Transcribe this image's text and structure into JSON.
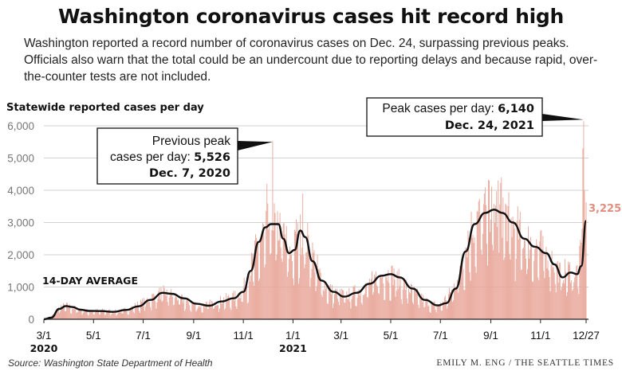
{
  "title": "Washington coronavirus cases hit record high",
  "subtitle": "Washington reported a record number of coronavirus cases on Dec. 24, surpassing previous peaks. Officials also warn that the total could be an undercount due to reporting delays and because rapid, over-the-counter tests are not included.",
  "source": "Source: Washington State Department of Health",
  "credit": "EMILY M. ENG / THE SEATTLE TIMES",
  "colors": {
    "bars": "#e8a79a",
    "bars_stroke": "#dc8e80",
    "average": "#111111",
    "last_label": "#e08f7e",
    "grid": "#d0d0d0"
  },
  "chart_data": {
    "type": "bar",
    "title": "Washington coronavirus cases hit record high",
    "ylabel": "Statewide reported cases per day",
    "ylim": [
      0,
      6000
    ],
    "yticks": [
      0,
      1000,
      2000,
      3000,
      4000,
      5000,
      6000
    ],
    "ytick_labels": [
      "0",
      "1,000",
      "2,000",
      "3,000",
      "4,000",
      "5,000",
      "6,000"
    ],
    "x_range": [
      "2020-03-01",
      "2021-12-27"
    ],
    "xticks": [
      {
        "date": "2020-03-01",
        "label": "3/1",
        "year": "2020"
      },
      {
        "date": "2020-05-01",
        "label": "5/1"
      },
      {
        "date": "2020-07-01",
        "label": "7/1"
      },
      {
        "date": "2020-09-01",
        "label": "9/1"
      },
      {
        "date": "2020-11-01",
        "label": "11/1"
      },
      {
        "date": "2021-01-01",
        "label": "1/1",
        "year": "2021"
      },
      {
        "date": "2021-03-01",
        "label": "3/1"
      },
      {
        "date": "2021-05-01",
        "label": "5/1"
      },
      {
        "date": "2021-07-01",
        "label": "7/1"
      },
      {
        "date": "2021-09-01",
        "label": "9/1"
      },
      {
        "date": "2021-11-01",
        "label": "11/1"
      },
      {
        "date": "2021-12-27",
        "label": "12/27"
      }
    ],
    "grid": "horizontal",
    "series": [
      {
        "name": "Statewide reported cases per day",
        "kind": "daily-bars",
        "shape_points": [
          [
            "2020-03-01",
            0
          ],
          [
            "2020-03-10",
            80
          ],
          [
            "2020-03-20",
            350
          ],
          [
            "2020-03-28",
            420
          ],
          [
            "2020-04-10",
            320
          ],
          [
            "2020-04-25",
            250
          ],
          [
            "2020-05-15",
            260
          ],
          [
            "2020-06-01",
            230
          ],
          [
            "2020-06-15",
            330
          ],
          [
            "2020-07-01",
            520
          ],
          [
            "2020-07-20",
            780
          ],
          [
            "2020-07-27",
            830
          ],
          [
            "2020-08-10",
            700
          ],
          [
            "2020-08-25",
            520
          ],
          [
            "2020-09-10",
            420
          ],
          [
            "2020-09-25",
            500
          ],
          [
            "2020-10-10",
            620
          ],
          [
            "2020-10-25",
            720
          ],
          [
            "2020-11-05",
            1100
          ],
          [
            "2020-11-15",
            2000
          ],
          [
            "2020-11-25",
            2600
          ],
          [
            "2020-12-07",
            2950
          ],
          [
            "2020-12-20",
            2700
          ],
          [
            "2020-12-28",
            2000
          ],
          [
            "2021-01-05",
            2300
          ],
          [
            "2021-01-12",
            2700
          ],
          [
            "2021-01-22",
            2200
          ],
          [
            "2021-02-05",
            1200
          ],
          [
            "2021-02-20",
            800
          ],
          [
            "2021-03-10",
            750
          ],
          [
            "2021-03-25",
            900
          ],
          [
            "2021-04-10",
            1200
          ],
          [
            "2021-04-25",
            1400
          ],
          [
            "2021-05-05",
            1350
          ],
          [
            "2021-05-20",
            1000
          ],
          [
            "2021-06-05",
            700
          ],
          [
            "2021-06-20",
            450
          ],
          [
            "2021-07-01",
            450
          ],
          [
            "2021-07-15",
            850
          ],
          [
            "2021-07-25",
            1500
          ],
          [
            "2021-08-05",
            2600
          ],
          [
            "2021-08-15",
            3100
          ],
          [
            "2021-08-25",
            3300
          ],
          [
            "2021-09-05",
            3400
          ],
          [
            "2021-09-15",
            3300
          ],
          [
            "2021-09-28",
            2900
          ],
          [
            "2021-10-15",
            2400
          ],
          [
            "2021-11-01",
            2200
          ],
          [
            "2021-11-15",
            1900
          ],
          [
            "2021-11-25",
            1400
          ],
          [
            "2021-12-08",
            1500
          ],
          [
            "2021-12-15",
            1400
          ],
          [
            "2021-12-20",
            1900
          ],
          [
            "2021-12-24",
            3000
          ],
          [
            "2021-12-27",
            3200
          ]
        ],
        "spikes": [
          [
            "2020-12-07",
            5526
          ],
          [
            "2021-12-24",
            6140
          ],
          [
            "2021-12-23",
            5300
          ],
          [
            "2021-12-25",
            4000
          ],
          [
            "2020-11-30",
            4200
          ],
          [
            "2021-01-13",
            3900
          ],
          [
            "2021-08-30",
            4300
          ],
          [
            "2021-09-10",
            4300
          ],
          [
            "2021-09-14",
            4400
          ],
          [
            "2021-08-24",
            3900
          ],
          [
            "2021-01-05",
            3100
          ]
        ]
      },
      {
        "name": "14-DAY AVERAGE",
        "kind": "line",
        "points": [
          [
            "2020-03-01",
            0
          ],
          [
            "2020-03-10",
            50
          ],
          [
            "2020-03-20",
            320
          ],
          [
            "2020-03-28",
            410
          ],
          [
            "2020-04-05",
            380
          ],
          [
            "2020-04-15",
            300
          ],
          [
            "2020-04-25",
            260
          ],
          [
            "2020-05-10",
            255
          ],
          [
            "2020-05-25",
            230
          ],
          [
            "2020-06-10",
            290
          ],
          [
            "2020-06-25",
            400
          ],
          [
            "2020-07-10",
            600
          ],
          [
            "2020-07-25",
            820
          ],
          [
            "2020-08-05",
            790
          ],
          [
            "2020-08-20",
            650
          ],
          [
            "2020-09-05",
            480
          ],
          [
            "2020-09-20",
            420
          ],
          [
            "2020-10-05",
            550
          ],
          [
            "2020-10-20",
            650
          ],
          [
            "2020-11-01",
            850
          ],
          [
            "2020-11-10",
            1500
          ],
          [
            "2020-11-20",
            2400
          ],
          [
            "2020-11-28",
            2850
          ],
          [
            "2020-12-05",
            2950
          ],
          [
            "2020-12-14",
            2950
          ],
          [
            "2020-12-20",
            2500
          ],
          [
            "2020-12-27",
            2050
          ],
          [
            "2021-01-03",
            2150
          ],
          [
            "2021-01-10",
            2750
          ],
          [
            "2021-01-16",
            2550
          ],
          [
            "2021-01-25",
            1800
          ],
          [
            "2021-02-05",
            1200
          ],
          [
            "2021-02-20",
            850
          ],
          [
            "2021-03-05",
            700
          ],
          [
            "2021-03-20",
            820
          ],
          [
            "2021-04-05",
            1100
          ],
          [
            "2021-04-20",
            1350
          ],
          [
            "2021-05-01",
            1400
          ],
          [
            "2021-05-12",
            1300
          ],
          [
            "2021-05-28",
            950
          ],
          [
            "2021-06-12",
            600
          ],
          [
            "2021-06-28",
            430
          ],
          [
            "2021-07-08",
            500
          ],
          [
            "2021-07-20",
            950
          ],
          [
            "2021-08-01",
            2100
          ],
          [
            "2021-08-12",
            2950
          ],
          [
            "2021-08-25",
            3300
          ],
          [
            "2021-09-05",
            3400
          ],
          [
            "2021-09-15",
            3300
          ],
          [
            "2021-09-28",
            3000
          ],
          [
            "2021-10-12",
            2500
          ],
          [
            "2021-10-25",
            2250
          ],
          [
            "2021-11-08",
            2050
          ],
          [
            "2021-11-18",
            1700
          ],
          [
            "2021-11-28",
            1300
          ],
          [
            "2021-12-08",
            1450
          ],
          [
            "2021-12-16",
            1400
          ],
          [
            "2021-12-21",
            1650
          ],
          [
            "2021-12-27",
            3050
          ]
        ]
      }
    ],
    "annotations": [
      {
        "id": "prev",
        "lines": [
          "Previous peak",
          "cases per day: "
        ],
        "value": "5,526",
        "date_text": "Dec. 7, 2020",
        "point": [
          "2020-12-07",
          5526
        ]
      },
      {
        "id": "peak",
        "label": "Peak cases per day: ",
        "value": "6,140",
        "date_text": "Dec. 24, 2021",
        "point": [
          "2021-12-24",
          6140
        ]
      }
    ],
    "last_value_label": "3,225",
    "average_label": "14-DAY AVERAGE"
  }
}
